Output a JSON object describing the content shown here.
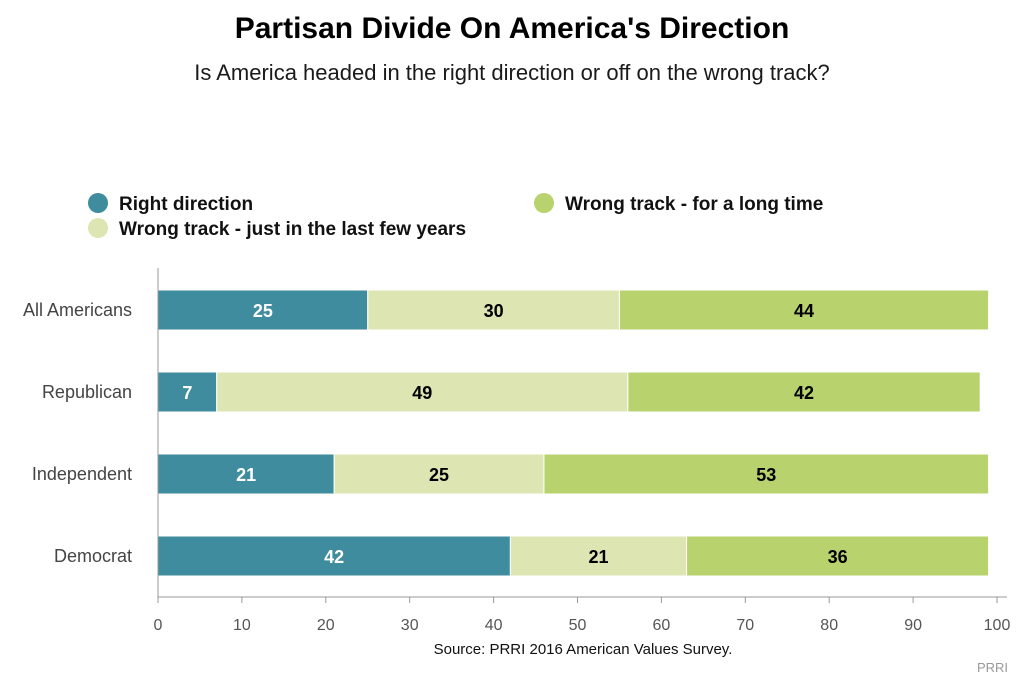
{
  "chart_data": {
    "type": "bar",
    "orientation": "horizontal",
    "stacked": true,
    "title": "Partisan Divide On America's Direction",
    "subtitle": "Is America headed in the right direction or off on the wrong track?",
    "categories": [
      "All Americans",
      "Republican",
      "Independent",
      "Democrat"
    ],
    "series": [
      {
        "name": "Right direction",
        "color": "#3f8c9e",
        "label_color": "#ffffff",
        "values": [
          25,
          7,
          21,
          42
        ]
      },
      {
        "name": "Wrong track - just in the last few years",
        "color": "#dde6b2",
        "label_color": "#000000",
        "values": [
          30,
          49,
          25,
          21
        ]
      },
      {
        "name": "Wrong track - for a long time",
        "color": "#b8d26e",
        "label_color": "#000000",
        "values": [
          44,
          42,
          53,
          36
        ]
      }
    ],
    "xlim": [
      0,
      100
    ],
    "xticks": [
      "0",
      "10",
      "20",
      "30",
      "40",
      "50",
      "60",
      "70",
      "80",
      "90",
      "100"
    ],
    "grid": false,
    "legend_position": "top",
    "source": "Source: PRRI 2016 American Values Survey.",
    "credit": "PRRI"
  }
}
